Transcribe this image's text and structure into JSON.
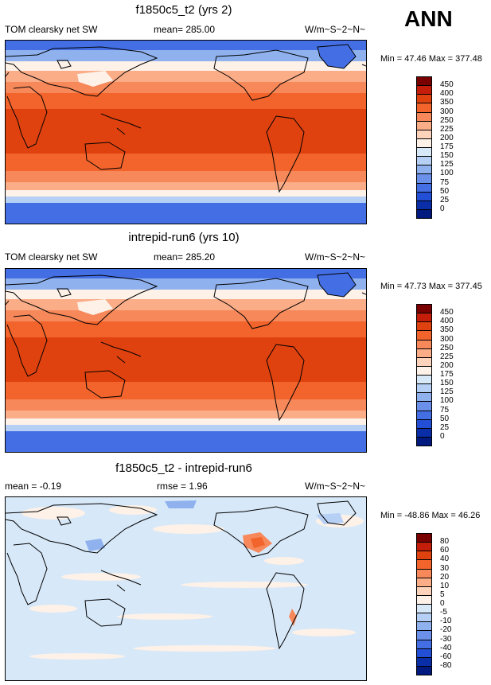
{
  "season": "ANN",
  "panels": [
    {
      "title": "f1850c5_t2 (yrs 2)",
      "left_label": "TOM clearsky net SW",
      "center_label": "mean= 285.00",
      "right_label": "W/m~S~2~N~",
      "minmax": "Min =  47.46 Max = 377.48",
      "colorbar": {
        "labels": [
          "450",
          "400",
          "350",
          "300",
          "250",
          "225",
          "200",
          "175",
          "150",
          "125",
          "100",
          "75",
          "50",
          "25",
          "0"
        ],
        "colors": [
          "#7a0000",
          "#c41e0a",
          "#e0420f",
          "#f2642c",
          "#f7885a",
          "#fbad88",
          "#fdd4bb",
          "#fdf1e8",
          "#d7e8f8",
          "#b5d0f4",
          "#8fb1ee",
          "#6a90ea",
          "#446fe4",
          "#234fd6",
          "#0a2ea8",
          "#001a80"
        ]
      }
    },
    {
      "title": "intrepid-run6 (yrs 10)",
      "left_label": "TOM clearsky net SW",
      "center_label": "mean= 285.20",
      "right_label": "W/m~S~2~N~",
      "minmax": "Min =  47.73 Max = 377.45",
      "colorbar": {
        "labels": [
          "450",
          "400",
          "350",
          "300",
          "250",
          "225",
          "200",
          "175",
          "150",
          "125",
          "100",
          "75",
          "50",
          "25",
          "0"
        ],
        "colors": [
          "#7a0000",
          "#c41e0a",
          "#e0420f",
          "#f2642c",
          "#f7885a",
          "#fbad88",
          "#fdd4bb",
          "#fdf1e8",
          "#d7e8f8",
          "#b5d0f4",
          "#8fb1ee",
          "#6a90ea",
          "#446fe4",
          "#234fd6",
          "#0a2ea8",
          "#001a80"
        ]
      }
    },
    {
      "title": "f1850c5_t2 - intrepid-run6",
      "left_label": "mean =  -0.19",
      "center_label": "rmse =   1.96",
      "right_label": "W/m~S~2~N~",
      "minmax": "Min = -48.86 Max =  46.26",
      "colorbar": {
        "labels": [
          "80",
          "60",
          "40",
          "30",
          "20",
          "10",
          "5",
          "0",
          "-5",
          "-10",
          "-20",
          "-30",
          "-40",
          "-60",
          "-80"
        ],
        "colors": [
          "#7a0000",
          "#c41e0a",
          "#e0420f",
          "#f2642c",
          "#f7885a",
          "#fbad88",
          "#fdd4bb",
          "#fdf1e8",
          "#d7e8f8",
          "#b5d0f4",
          "#8fb1ee",
          "#6a90ea",
          "#446fe4",
          "#234fd6",
          "#0a2ea8",
          "#001a80"
        ]
      }
    }
  ]
}
